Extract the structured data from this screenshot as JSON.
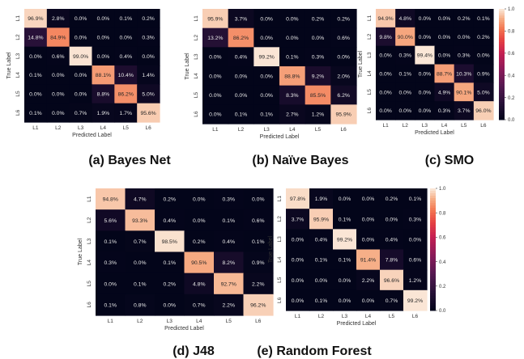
{
  "figure": {
    "captions": [
      "(a) Bayes Net",
      "(b) Naïve Bayes",
      "(c) SMO",
      "(d) J48",
      "(e) Random Forest"
    ]
  },
  "chart_data": [
    {
      "type": "heatmap",
      "xlabel": "Predicted Label",
      "ylabel": "True Label",
      "x_categories": [
        "L1",
        "L2",
        "L3",
        "L4",
        "L5",
        "L6"
      ],
      "y_categories": [
        "L1",
        "L2",
        "L3",
        "L4",
        "L5",
        "L6"
      ],
      "values": [
        [
          96.9,
          2.8,
          0.0,
          0.0,
          0.1,
          0.2
        ],
        [
          14.8,
          84.9,
          0.0,
          0.0,
          0.0,
          0.3
        ],
        [
          0.0,
          0.6,
          99.0,
          0.0,
          0.4,
          0.0
        ],
        [
          0.1,
          0.0,
          0.0,
          88.1,
          10.4,
          1.4
        ],
        [
          0.0,
          0.0,
          0.0,
          8.8,
          86.2,
          5.0
        ],
        [
          0.1,
          0.0,
          0.7,
          1.9,
          1.7,
          95.6
        ]
      ],
      "cell_labels": [
        [
          "96.9%",
          "2.8%",
          "0.0%",
          "0.0%",
          "0.1%",
          "0.2%"
        ],
        [
          "14.8%",
          "84.9%",
          "0.0%",
          "0.0%",
          "0.0%",
          "0.3%"
        ],
        [
          "0.0%",
          "0.6%",
          "99.0%",
          "0.0%",
          "0.4%",
          "0.0%"
        ],
        [
          "0.1%",
          "0.0%",
          "0.0%",
          "88.1%",
          "10.4%",
          "1.4%"
        ],
        [
          "0.0%",
          "0.0%",
          "0.0%",
          "8.8%",
          "86.2%",
          "5.0%"
        ],
        [
          "0.1%",
          "0.0%",
          "0.7%",
          "1.9%",
          "1.7%",
          "95.6%"
        ]
      ],
      "colorbar": false
    },
    {
      "type": "heatmap",
      "xlabel": "Predicted Label",
      "ylabel": "True Label",
      "x_categories": [
        "L1",
        "L2",
        "L3",
        "L4",
        "L5",
        "L6"
      ],
      "y_categories": [
        "L1",
        "L2",
        "L3",
        "L4",
        "L5",
        "L6"
      ],
      "values": [
        [
          95.9,
          3.7,
          0.0,
          0.0,
          0.2,
          0.2
        ],
        [
          13.2,
          86.2,
          0.0,
          0.0,
          0.0,
          0.6
        ],
        [
          0.0,
          0.4,
          99.2,
          0.1,
          0.3,
          0.0
        ],
        [
          0.0,
          0.0,
          0.0,
          88.8,
          9.2,
          2.0
        ],
        [
          0.0,
          0.0,
          0.0,
          8.3,
          85.5,
          6.2
        ],
        [
          0.0,
          0.1,
          0.1,
          2.7,
          1.2,
          95.9
        ]
      ],
      "cell_labels": [
        [
          "95.9%",
          "3.7%",
          "0.0%",
          "0.0%",
          "0.2%",
          "0.2%"
        ],
        [
          "13.2%",
          "86.2%",
          "0.0%",
          "0.0%",
          "0.0%",
          "0.6%"
        ],
        [
          "0.0%",
          "0.4%",
          "99.2%",
          "0.1%",
          "0.3%",
          "0.0%"
        ],
        [
          "0.0%",
          "0.0%",
          "0.0%",
          "88.8%",
          "9.2%",
          "2.0%"
        ],
        [
          "0.0%",
          "0.0%",
          "0.0%",
          "8.3%",
          "85.5%",
          "6.2%"
        ],
        [
          "0.0%",
          "0.1%",
          "0.1%",
          "2.7%",
          "1.2%",
          "95.9%"
        ]
      ],
      "colorbar": false
    },
    {
      "type": "heatmap",
      "xlabel": "Predicted Label",
      "ylabel": "True Label",
      "x_categories": [
        "L1",
        "L2",
        "L3",
        "L4",
        "L5",
        "L6"
      ],
      "y_categories": [
        "L1",
        "L2",
        "L3",
        "L4",
        "L5",
        "L6"
      ],
      "values": [
        [
          94.9,
          4.8,
          0.0,
          0.0,
          0.2,
          0.1
        ],
        [
          9.8,
          90.0,
          0.0,
          0.0,
          0.0,
          0.2
        ],
        [
          0.0,
          0.3,
          99.4,
          0.0,
          0.3,
          0.0
        ],
        [
          0.0,
          0.1,
          0.0,
          88.7,
          10.3,
          0.9
        ],
        [
          0.0,
          0.0,
          0.0,
          4.9,
          90.1,
          5.0
        ],
        [
          0.0,
          0.0,
          0.0,
          0.3,
          3.7,
          96.0
        ]
      ],
      "cell_labels": [
        [
          "94.9%",
          "4.8%",
          "0.0%",
          "0.0%",
          "0.2%",
          "0.1%"
        ],
        [
          "9.8%",
          "90.0%",
          "0.0%",
          "0.0%",
          "0.0%",
          "0.2%"
        ],
        [
          "0.0%",
          "0.3%",
          "99.4%",
          "0.0%",
          "0.3%",
          "0.0%"
        ],
        [
          "0.0%",
          "0.1%",
          "0.0%",
          "88.7%",
          "10.3%",
          "0.9%"
        ],
        [
          "0.0%",
          "0.0%",
          "0.0%",
          "4.9%",
          "90.1%",
          "5.0%"
        ],
        [
          "0.0%",
          "0.0%",
          "0.0%",
          "0.3%",
          "3.7%",
          "96.0%"
        ]
      ],
      "colorbar": true,
      "colorbar_ticks": [
        "1.0",
        "0.8",
        "0.6",
        "0.4",
        "0.2",
        "0.0"
      ]
    },
    {
      "type": "heatmap",
      "xlabel": "Predicted Label",
      "ylabel": "True Label",
      "x_categories": [
        "L1",
        "L2",
        "L3",
        "L4",
        "L5",
        "L6"
      ],
      "y_categories": [
        "L1",
        "L2",
        "L3",
        "L4",
        "L5",
        "L6"
      ],
      "values": [
        [
          94.8,
          4.7,
          0.2,
          0.0,
          0.3,
          0.0
        ],
        [
          5.6,
          93.3,
          0.4,
          0.0,
          0.1,
          0.6
        ],
        [
          0.1,
          0.7,
          98.5,
          0.2,
          0.4,
          0.1
        ],
        [
          0.3,
          0.0,
          0.1,
          90.5,
          8.2,
          0.9
        ],
        [
          0.0,
          0.1,
          0.2,
          4.8,
          92.7,
          2.2
        ],
        [
          0.1,
          0.8,
          0.0,
          0.7,
          2.2,
          96.2
        ]
      ],
      "cell_labels": [
        [
          "94.8%",
          "4.7%",
          "0.2%",
          "0.0%",
          "0.3%",
          "0.0%"
        ],
        [
          "5.6%",
          "93.3%",
          "0.4%",
          "0.0%",
          "0.1%",
          "0.6%"
        ],
        [
          "0.1%",
          "0.7%",
          "98.5%",
          "0.2%",
          "0.4%",
          "0.1%"
        ],
        [
          "0.3%",
          "0.0%",
          "0.1%",
          "90.5%",
          "8.2%",
          "0.9%"
        ],
        [
          "0.0%",
          "0.1%",
          "0.2%",
          "4.8%",
          "92.7%",
          "2.2%"
        ],
        [
          "0.1%",
          "0.8%",
          "0.0%",
          "0.7%",
          "2.2%",
          "96.2%"
        ]
      ],
      "colorbar": false
    },
    {
      "type": "heatmap",
      "xlabel": "Predicted Label",
      "ylabel": "True Label",
      "x_categories": [
        "L1",
        "L2",
        "L3",
        "L4",
        "L5",
        "L6"
      ],
      "y_categories": [
        "L1",
        "L2",
        "L3",
        "L4",
        "L5",
        "L6"
      ],
      "values": [
        [
          97.8,
          1.9,
          0.0,
          0.0,
          0.2,
          0.1
        ],
        [
          3.7,
          95.9,
          0.1,
          0.0,
          0.0,
          0.3
        ],
        [
          0.0,
          0.4,
          99.2,
          0.0,
          0.4,
          0.0
        ],
        [
          0.0,
          0.1,
          0.1,
          91.4,
          7.8,
          0.6
        ],
        [
          0.0,
          0.0,
          0.0,
          2.2,
          96.6,
          1.2
        ],
        [
          0.0,
          0.1,
          0.0,
          0.0,
          0.7,
          99.2
        ]
      ],
      "cell_labels": [
        [
          "97.8%",
          "1.9%",
          "0.0%",
          "0.0%",
          "0.2%",
          "0.1%"
        ],
        [
          "3.7%",
          "95.9%",
          "0.1%",
          "0.0%",
          "0.0%",
          "0.3%"
        ],
        [
          "0.0%",
          "0.4%",
          "99.2%",
          "0.0%",
          "0.4%",
          "0.0%"
        ],
        [
          "0.0%",
          "0.1%",
          "0.1%",
          "91.4%",
          "7.8%",
          "0.6%"
        ],
        [
          "0.0%",
          "0.0%",
          "0.0%",
          "2.2%",
          "96.6%",
          "1.2%"
        ],
        [
          "0.0%",
          "0.1%",
          "0.0%",
          "0.0%",
          "0.7%",
          "99.2%"
        ]
      ],
      "colorbar": true,
      "colorbar_ticks": [
        "1.0",
        "0.8",
        "0.6",
        "0.4",
        "0.2",
        "0.0"
      ]
    }
  ]
}
